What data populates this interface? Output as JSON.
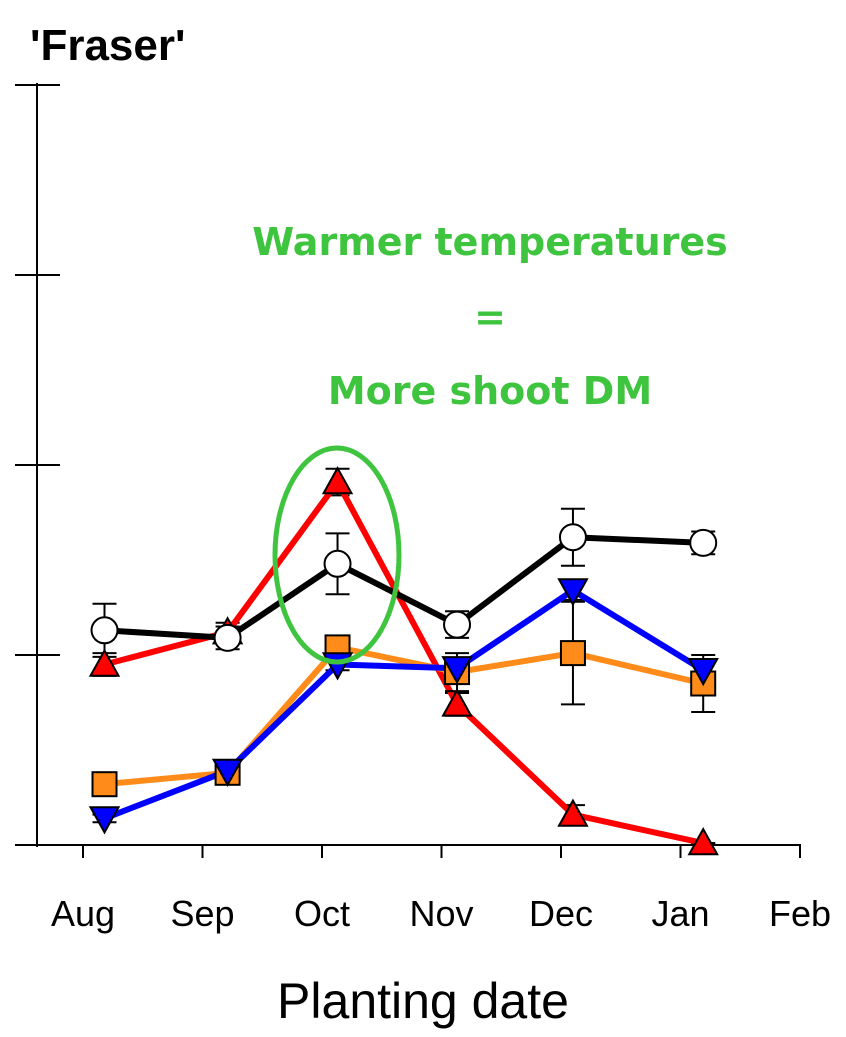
{
  "chart_data": {
    "type": "line",
    "title": "'Fraser'",
    "xlabel": "Planting date",
    "annotation": [
      "Warmer temperatures",
      "=",
      "More shoot DM"
    ],
    "xlim": [
      0,
      6
    ],
    "xticks": [
      {
        "value": 0,
        "label": "Aug"
      },
      {
        "value": 1,
        "label": "Sep"
      },
      {
        "value": 2,
        "label": "Oct"
      },
      {
        "value": 3,
        "label": "Nov"
      },
      {
        "value": 4,
        "label": "Dec"
      },
      {
        "value": 5,
        "label": "Jan"
      },
      {
        "value": 6,
        "label": "Feb"
      }
    ],
    "ylim": [
      0,
      4
    ],
    "yticks": [
      0,
      1,
      2,
      3,
      4
    ],
    "x": [
      0.18,
      1.21,
      2.13,
      3.13,
      4.1,
      5.19
    ],
    "series": [
      {
        "color": "#ff0000",
        "marker": "triangle-up",
        "values": [
          0.95,
          1.12,
          1.91,
          0.74,
          0.16,
          0.01
        ],
        "errors": [
          0.06,
          0.05,
          0.07,
          0.06,
          0.05,
          0
        ]
      },
      {
        "color": "#ff8c1a",
        "marker": "square",
        "values": [
          0.32,
          0.38,
          1.04,
          0.91,
          1.01,
          0.85
        ],
        "errors": [
          0,
          0.02,
          0.03,
          0.1,
          0.27,
          0.15
        ]
      },
      {
        "color": "#0000ff",
        "marker": "triangle-down",
        "values": [
          0.14,
          0.39,
          0.95,
          0.93,
          1.34,
          0.92
        ],
        "errors": [
          0.02,
          0.02,
          0.03,
          0.05,
          0.05,
          0.05
        ]
      },
      {
        "color": "#000000",
        "marker": "circle",
        "values": [
          1.13,
          1.09,
          1.48,
          1.16,
          1.62,
          1.59
        ],
        "errors": [
          0.14,
          0.06,
          0.16,
          0.07,
          0.15,
          0.06
        ]
      }
    ]
  }
}
